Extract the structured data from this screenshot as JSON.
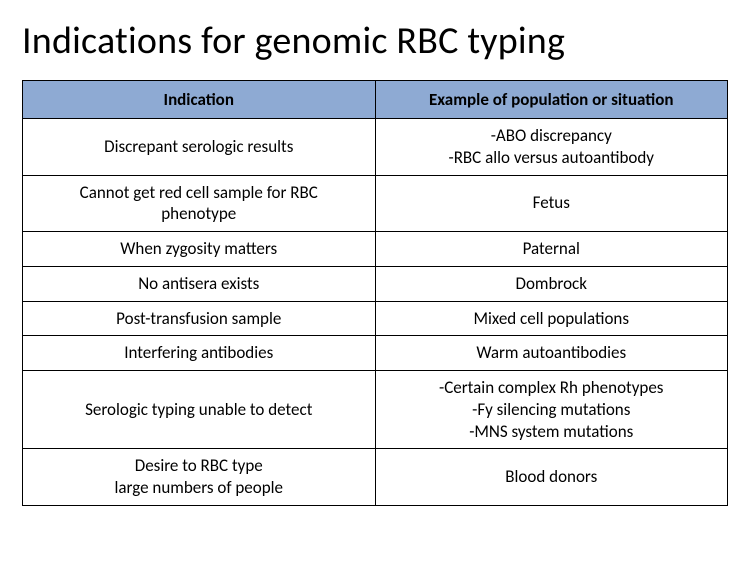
{
  "slide": {
    "title": "Indications for genomic RBC typing",
    "background_color": "#ffffff",
    "title_color": "#000000",
    "title_fontsize": 38
  },
  "table": {
    "header_bg": "#8eaad3",
    "border_color": "#000000",
    "cell_fontsize": 17,
    "header_fontsize": 17,
    "columns": [
      {
        "label": "Indication",
        "width": "50%"
      },
      {
        "label": "Example of population or situation",
        "width": "50%"
      }
    ],
    "rows": [
      {
        "indication": "Discrepant serologic results",
        "example": "-ABO discrepancy\n-RBC allo versus autoantibody"
      },
      {
        "indication": "Cannot get red cell sample for RBC\nphenotype",
        "example": "Fetus"
      },
      {
        "indication": "When zygosity matters",
        "example": "Paternal"
      },
      {
        "indication": "No antisera exists",
        "example": "Dombrock"
      },
      {
        "indication": "Post-transfusion sample",
        "example": "Mixed cell populations"
      },
      {
        "indication": "Interfering antibodies",
        "example": "Warm autoantibodies"
      },
      {
        "indication": "Serologic typing unable to detect",
        "example": "-Certain complex Rh phenotypes\n-Fy silencing mutations\n-MNS system mutations"
      },
      {
        "indication": "Desire to RBC type\nlarge numbers of people",
        "example": "Blood donors"
      }
    ]
  }
}
